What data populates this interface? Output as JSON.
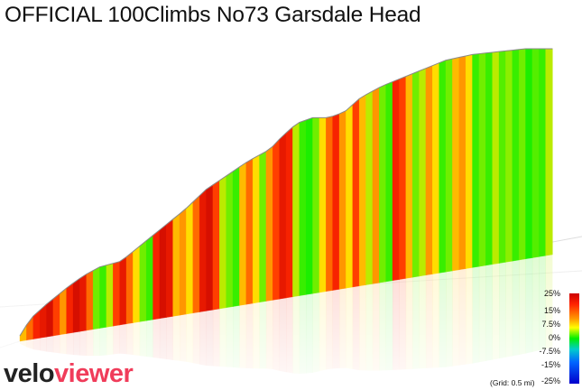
{
  "title": "OFFICIAL 100Climbs No73 Garsdale Head",
  "brand": {
    "part1": "velo",
    "part2": "viewer"
  },
  "grid_note": "(Grid: 0.5 mi)",
  "legend": {
    "labels": [
      "25%",
      "15%",
      "7.5%",
      "0%",
      "-7.5%",
      "-15%",
      "-25%"
    ],
    "colors": [
      "#cc0000",
      "#ff2200",
      "#ffcc00",
      "#00ee00",
      "#00cccc",
      "#0055ff",
      "#0000cc"
    ]
  },
  "colors": {
    "brand_accent": "#f03c5a",
    "steep": "#cc1100",
    "flat": "#22ee22"
  },
  "chart_data": {
    "type": "area",
    "title": "OFFICIAL 100Climbs No73 Garsdale Head",
    "xlabel": "",
    "ylabel": "",
    "grid_interval": "0.5 mi",
    "gradient_scale_percent": [
      25,
      15,
      7.5,
      0,
      -7.5,
      -15,
      -25
    ],
    "color_encodes": "gradient %",
    "profile_shape": [
      [
        0.0,
        0.0
      ],
      [
        0.02,
        0.06
      ],
      [
        0.05,
        0.11
      ],
      [
        0.09,
        0.17
      ],
      [
        0.12,
        0.21
      ],
      [
        0.15,
        0.24
      ],
      [
        0.19,
        0.26
      ],
      [
        0.23,
        0.32
      ],
      [
        0.27,
        0.38
      ],
      [
        0.31,
        0.44
      ],
      [
        0.35,
        0.51
      ],
      [
        0.39,
        0.56
      ],
      [
        0.43,
        0.61
      ],
      [
        0.47,
        0.65
      ],
      [
        0.49,
        0.69
      ],
      [
        0.52,
        0.74
      ],
      [
        0.55,
        0.76
      ],
      [
        0.58,
        0.76
      ],
      [
        0.61,
        0.78
      ],
      [
        0.64,
        0.83
      ],
      [
        0.68,
        0.87
      ],
      [
        0.72,
        0.9
      ],
      [
        0.76,
        0.93
      ],
      [
        0.8,
        0.96
      ],
      [
        0.85,
        0.98
      ],
      [
        0.9,
        0.99
      ],
      [
        0.95,
        1.0
      ],
      [
        1.0,
        1.0
      ]
    ],
    "segment_gradients": [
      10,
      14,
      18,
      20,
      22,
      16,
      12,
      18,
      22,
      20,
      14,
      4,
      2,
      6,
      16,
      20,
      14,
      8,
      4,
      2,
      18,
      22,
      20,
      10,
      12,
      8,
      14,
      20,
      22,
      16,
      6,
      4,
      2,
      10,
      14,
      8,
      4,
      12,
      16,
      20,
      18,
      6,
      2,
      1,
      4,
      8,
      14,
      18,
      12,
      8,
      16,
      10,
      6,
      12,
      4,
      2,
      18,
      16,
      10,
      4,
      6,
      12,
      8,
      2,
      4,
      10,
      12,
      8,
      2,
      4,
      2,
      6,
      3,
      5,
      2,
      4,
      1,
      3,
      2,
      6
    ]
  }
}
